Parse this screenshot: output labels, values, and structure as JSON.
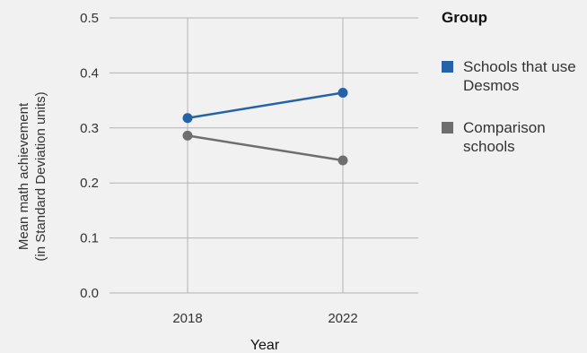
{
  "chart_data": {
    "type": "line",
    "x": [
      "2018",
      "2022"
    ],
    "series": [
      {
        "name": "Schools that use Desmos",
        "values": [
          0.318,
          0.364
        ],
        "color": "#2563a8"
      },
      {
        "name": "Comparison schools",
        "values": [
          0.286,
          0.241
        ],
        "color": "#6e6e6e"
      }
    ],
    "xlabel": "Year",
    "ylabel": "Mean math achievement",
    "ylabel_line2": "(in Standard Deviation units)",
    "ylim": [
      0,
      0.5
    ],
    "yticks": [
      "0.0",
      "0.1",
      "0.2",
      "0.3",
      "0.4",
      "0.5"
    ],
    "legend_title": "Group",
    "legend_position": "right",
    "grid": true
  }
}
